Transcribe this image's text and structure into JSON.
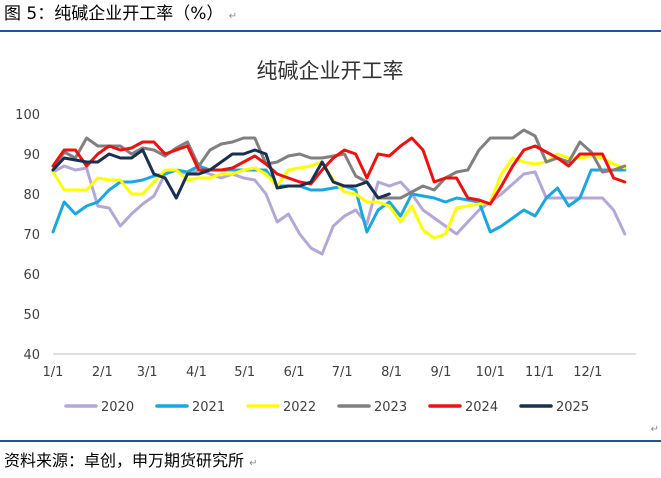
{
  "figure": {
    "caption": "图 5：纯碱企业开工率（%）",
    "source": "资料来源：卓创，申万期货研究所",
    "para_mark": "↵"
  },
  "chart_data": {
    "type": "line",
    "title": "纯碱企业开工率",
    "xlabel": "",
    "ylabel": "",
    "ylim": [
      40,
      100
    ],
    "yticks": [
      40,
      50,
      60,
      70,
      80,
      90,
      100
    ],
    "xlim": [
      1,
      53
    ],
    "xticks": [
      {
        "label": "1/1",
        "week": 1
      },
      {
        "label": "2/1",
        "week": 5.4
      },
      {
        "label": "3/1",
        "week": 9.4
      },
      {
        "label": "4/1",
        "week": 13.8
      },
      {
        "label": "5/1",
        "week": 18.1
      },
      {
        "label": "6/1",
        "week": 22.5
      },
      {
        "label": "7/1",
        "week": 26.8
      },
      {
        "label": "8/1",
        "week": 31.2
      },
      {
        "label": "9/1",
        "week": 35.6
      },
      {
        "label": "10/1",
        "week": 40
      },
      {
        "label": "11/1",
        "week": 44.4
      },
      {
        "label": "12/1",
        "week": 48.7
      }
    ],
    "grid": false,
    "legend": "bottom",
    "series": [
      {
        "name": "2020",
        "color": "#b4a7d6",
        "values": [
          85.5,
          87,
          86,
          86.5,
          77,
          76.5,
          72,
          75,
          77.5,
          79.5,
          85,
          86,
          85,
          86,
          85,
          84,
          85,
          84,
          83.5,
          80,
          73,
          75,
          70,
          66.5,
          65,
          72,
          74.5,
          76,
          72.5,
          83,
          82,
          83,
          80,
          76,
          74,
          72,
          70,
          73,
          76,
          78,
          80,
          82.5,
          85,
          85.5,
          79,
          79,
          79,
          79,
          79,
          79,
          76,
          70
        ]
      },
      {
        "name": "2021",
        "color": "#1aa7df",
        "values": [
          70.5,
          78,
          75,
          77,
          78,
          81,
          83,
          83,
          83.5,
          84.5,
          85,
          86,
          85.5,
          87,
          86,
          86,
          86,
          86,
          86,
          86,
          82,
          82,
          82,
          81,
          81,
          81.5,
          82,
          81,
          70.5,
          76,
          78,
          74.5,
          80,
          79.5,
          79,
          78,
          79,
          78.5,
          78,
          70.5,
          72,
          74,
          76,
          74.5,
          79,
          81.5,
          77,
          79,
          86,
          86,
          86,
          86
        ]
      },
      {
        "name": "2022",
        "color": "#ffff00",
        "values": [
          85.5,
          81,
          81,
          81,
          84,
          83.5,
          83.5,
          80,
          80,
          83,
          86,
          86,
          83.5,
          84,
          84,
          85,
          85,
          86,
          86.5,
          85,
          82,
          86,
          86.5,
          87,
          88,
          83.5,
          80.5,
          80,
          78,
          78,
          77,
          73,
          77,
          71,
          69,
          70,
          76.5,
          77,
          77.5,
          78,
          85,
          89,
          88,
          87.5,
          88,
          90,
          89,
          89,
          89.5,
          89,
          87.5,
          86.5
        ]
      },
      {
        "name": "2023",
        "color": "#808080",
        "values": [
          86,
          90.5,
          89,
          94,
          92,
          92,
          92,
          90,
          91.5,
          91,
          89.5,
          91.5,
          93,
          87,
          91,
          92.5,
          93,
          94,
          94,
          87.5,
          88,
          89.5,
          90,
          89,
          89,
          89.5,
          90,
          84.5,
          83,
          79,
          79,
          79,
          80.5,
          82,
          81,
          84,
          85.5,
          86,
          91,
          94,
          94,
          94,
          96,
          94.5,
          88,
          89,
          88,
          93,
          90.5,
          85.5,
          86,
          87
        ]
      },
      {
        "name": "2024",
        "color": "#ee1111",
        "values": [
          87,
          91,
          91,
          87,
          90,
          92,
          91,
          91.5,
          93,
          93,
          90,
          91,
          92,
          86,
          86,
          86,
          86.5,
          88,
          89.5,
          87.5,
          85,
          84,
          83,
          82.5,
          86,
          89,
          91,
          90,
          84,
          90,
          89.5,
          92,
          94,
          91,
          83,
          84,
          84,
          79,
          78.5,
          77.5,
          82,
          87,
          91,
          92,
          90.5,
          89,
          87,
          90,
          90,
          90,
          84,
          83
        ]
      },
      {
        "name": "2025",
        "color": "#1b2f4f",
        "values": [
          86,
          89,
          88.5,
          88,
          88,
          90,
          89,
          89,
          91,
          85,
          84,
          79,
          85,
          85,
          86,
          88,
          90,
          90,
          91,
          90,
          81.5,
          82,
          82,
          83,
          88,
          83,
          82,
          82,
          83,
          79,
          80
        ]
      }
    ]
  }
}
